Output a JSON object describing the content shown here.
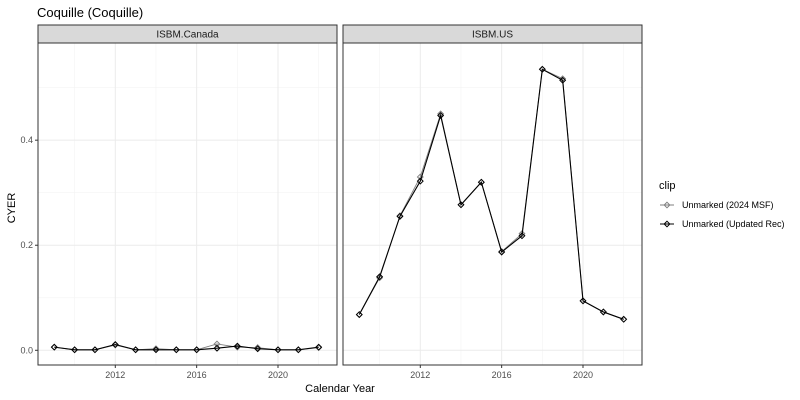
{
  "chart_data": {
    "type": "line",
    "title": "Coquille (Coquille)",
    "xlabel": "Calendar Year",
    "ylabel": "CYER",
    "xlim": [
      2008.2,
      2022.9
    ],
    "ylim": [
      -0.028,
      0.585
    ],
    "x_ticks": [
      2012,
      2016,
      2020
    ],
    "y_ticks": [
      0.0,
      0.2,
      0.4
    ],
    "y_tick_labels": [
      "0.0",
      "0.2",
      "0.4"
    ],
    "grid": true,
    "legend": {
      "title": "clip",
      "position": "right",
      "entries": [
        "Unmarked (2024 MSF)",
        "Unmarked (Updated Rec)"
      ]
    },
    "series_colors": [
      "#7f7f7f",
      "#000000"
    ],
    "facets": [
      {
        "label": "ISBM.Canada",
        "series": [
          {
            "name": "Unmarked (2024 MSF)",
            "x": [
              2009,
              2010,
              2011,
              2012,
              2013,
              2014,
              2015,
              2016,
              2017,
              2018,
              2019,
              2020,
              2021,
              2022
            ],
            "y": [
              0.006,
              0.001,
              0.001,
              0.01,
              0.001,
              0.003,
              0.001,
              0.001,
              0.012,
              0.006,
              0.005,
              0.001,
              0.001,
              0.005
            ]
          },
          {
            "name": "Unmarked (Updated Rec)",
            "x": [
              2009,
              2010,
              2011,
              2012,
              2013,
              2014,
              2015,
              2016,
              2017,
              2018,
              2019,
              2020,
              2021,
              2022
            ],
            "y": [
              0.006,
              0.001,
              0.001,
              0.011,
              0.001,
              0.001,
              0.001,
              0.001,
              0.004,
              0.008,
              0.003,
              0.001,
              0.001,
              0.006
            ]
          }
        ]
      },
      {
        "label": "ISBM.US",
        "series": [
          {
            "name": "Unmarked (2024 MSF)",
            "x": [
              2009,
              2010,
              2011,
              2012,
              2013,
              2014,
              2015,
              2016,
              2017,
              2018,
              2019,
              2020,
              2021,
              2022
            ],
            "y": [
              0.068,
              0.138,
              0.256,
              0.33,
              0.45,
              0.277,
              0.32,
              0.188,
              0.222,
              0.535,
              0.517,
              0.094,
              0.073,
              0.059
            ]
          },
          {
            "name": "Unmarked (Updated Rec)",
            "x": [
              2009,
              2010,
              2011,
              2012,
              2013,
              2014,
              2015,
              2016,
              2017,
              2018,
              2019,
              2020,
              2021,
              2022
            ],
            "y": [
              0.068,
              0.14,
              0.255,
              0.322,
              0.447,
              0.277,
              0.32,
              0.187,
              0.218,
              0.535,
              0.514,
              0.094,
              0.073,
              0.059
            ]
          }
        ]
      }
    ]
  }
}
